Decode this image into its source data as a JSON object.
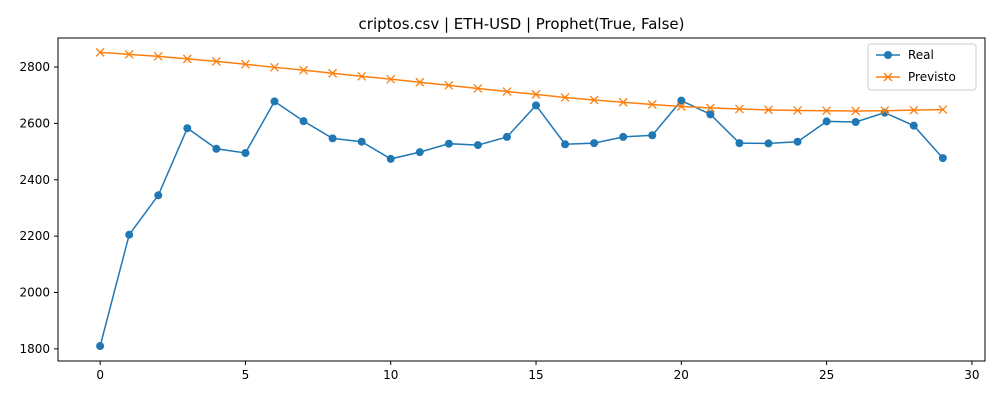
{
  "chart_data": {
    "type": "line",
    "title": "criptos.csv | ETH-USD | Prophet(True, False)",
    "xlabel": "",
    "ylabel": "",
    "xlim": [
      -1.45,
      30.45
    ],
    "ylim": [
      1757,
      2903
    ],
    "x_ticks": [
      0,
      5,
      10,
      15,
      20,
      25,
      30
    ],
    "y_ticks": [
      1800,
      2000,
      2200,
      2400,
      2600,
      2800
    ],
    "grid": false,
    "legend_position": "top-right",
    "x": [
      0,
      1,
      2,
      3,
      4,
      5,
      6,
      7,
      8,
      9,
      10,
      11,
      12,
      13,
      14,
      15,
      16,
      17,
      18,
      19,
      20,
      21,
      22,
      23,
      24,
      25,
      26,
      27,
      28,
      29
    ],
    "series": [
      {
        "name": "Real",
        "color": "#1f77b4",
        "marker": "circle",
        "values": [
          1810,
          2205,
          2345,
          2583,
          2510,
          2495,
          2678,
          2608,
          2547,
          2535,
          2474,
          2498,
          2528,
          2523,
          2552,
          2664,
          2526,
          2530,
          2552,
          2558,
          2681,
          2632,
          2530,
          2529,
          2535,
          2607,
          2605,
          2638,
          2592,
          2477
        ]
      },
      {
        "name": "Previsto",
        "color": "#ff7f0e",
        "marker": "x",
        "values": [
          2852,
          2845,
          2838,
          2829,
          2820,
          2810,
          2799,
          2789,
          2778,
          2767,
          2757,
          2746,
          2735,
          2724,
          2713,
          2703,
          2692,
          2683,
          2675,
          2667,
          2660,
          2655,
          2651,
          2648,
          2646,
          2645,
          2644,
          2645,
          2647,
          2649
        ]
      }
    ]
  }
}
